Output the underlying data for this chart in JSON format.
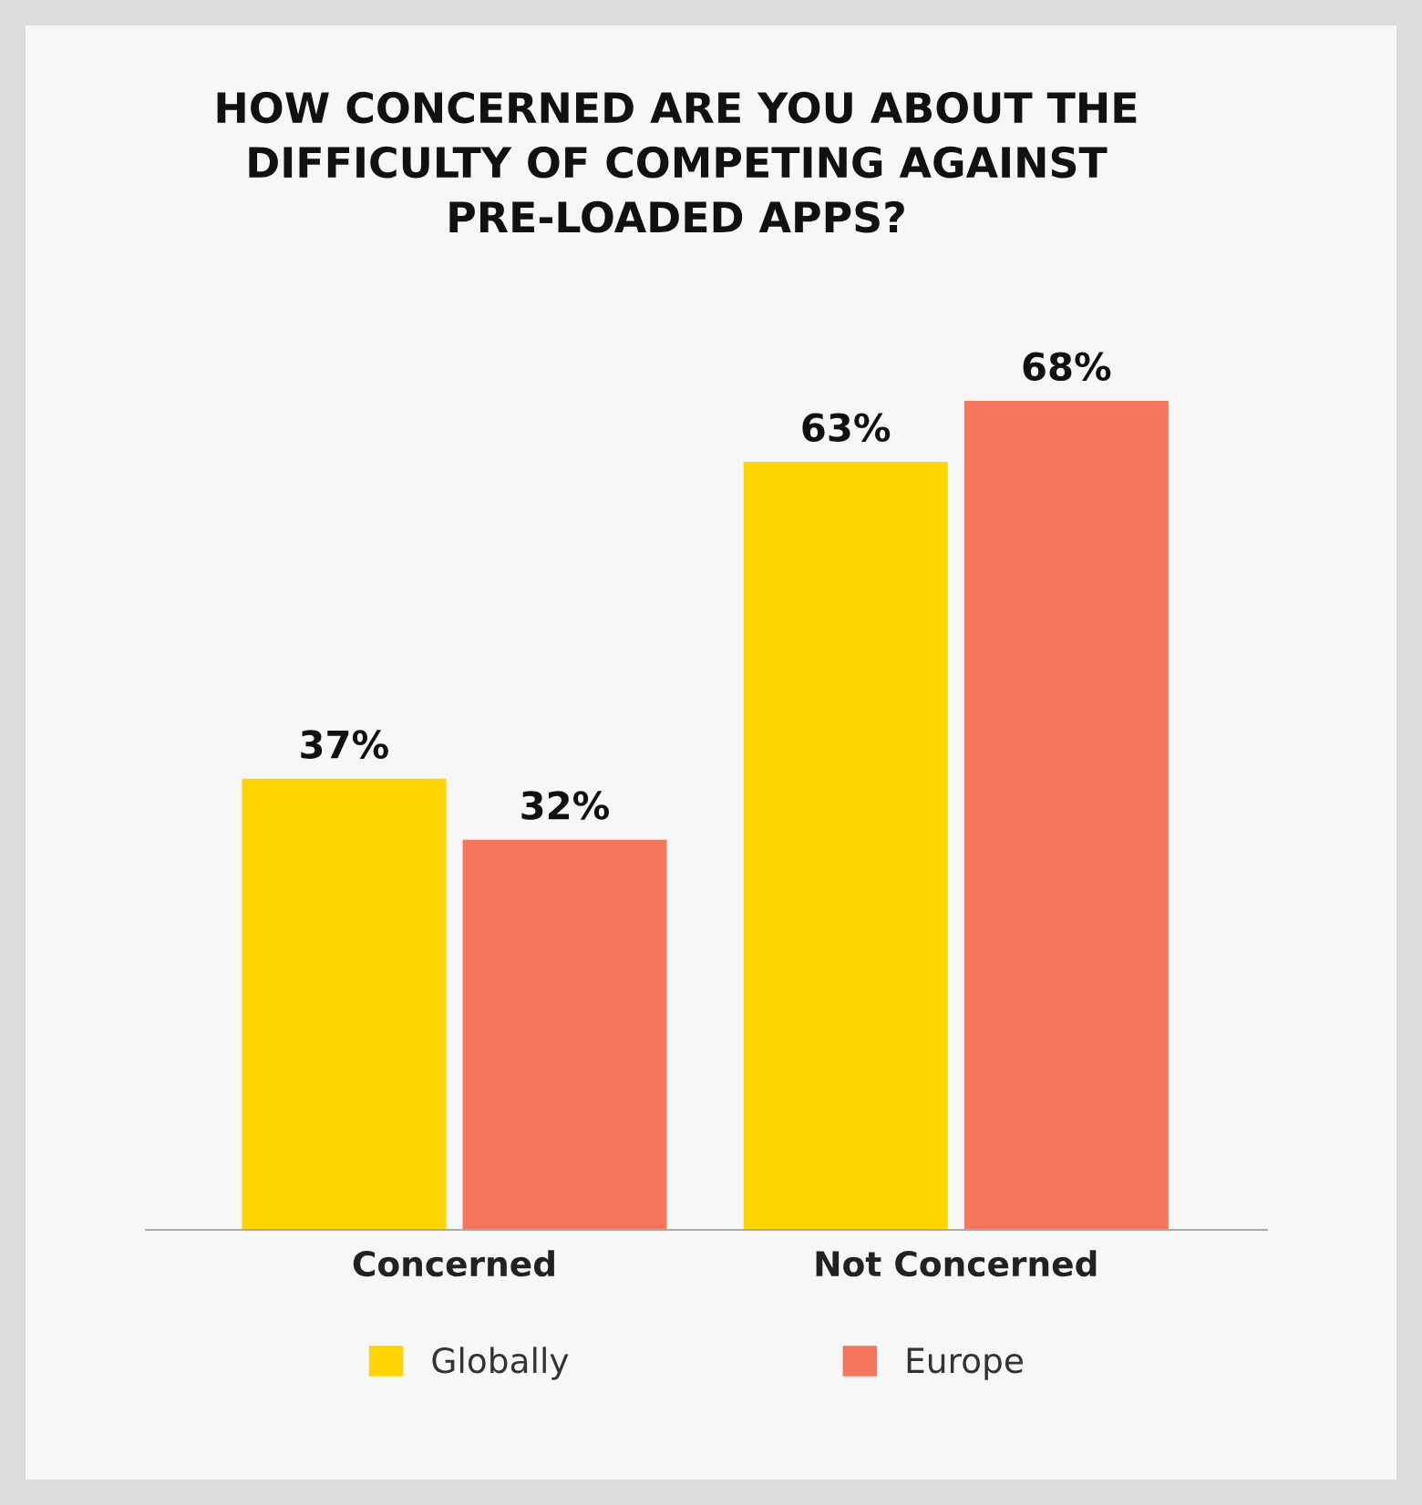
{
  "chart_data": {
    "type": "bar",
    "title": "HOW CONCERNED ARE YOU ABOUT THE\nDIFFICULTY OF COMPETING AGAINST\nPRE-LOADED APPS?",
    "categories": [
      "Concerned",
      "Not Concerned"
    ],
    "series": [
      {
        "name": "Globally",
        "color": "#fed401",
        "values": [
          37,
          63
        ],
        "value_labels": [
          "37%",
          "63%"
        ]
      },
      {
        "name": "Europe",
        "color": "#f4775d",
        "values": [
          32,
          68
        ],
        "value_labels": [
          "32%",
          "68%"
        ]
      }
    ],
    "legend": "bottom"
  }
}
